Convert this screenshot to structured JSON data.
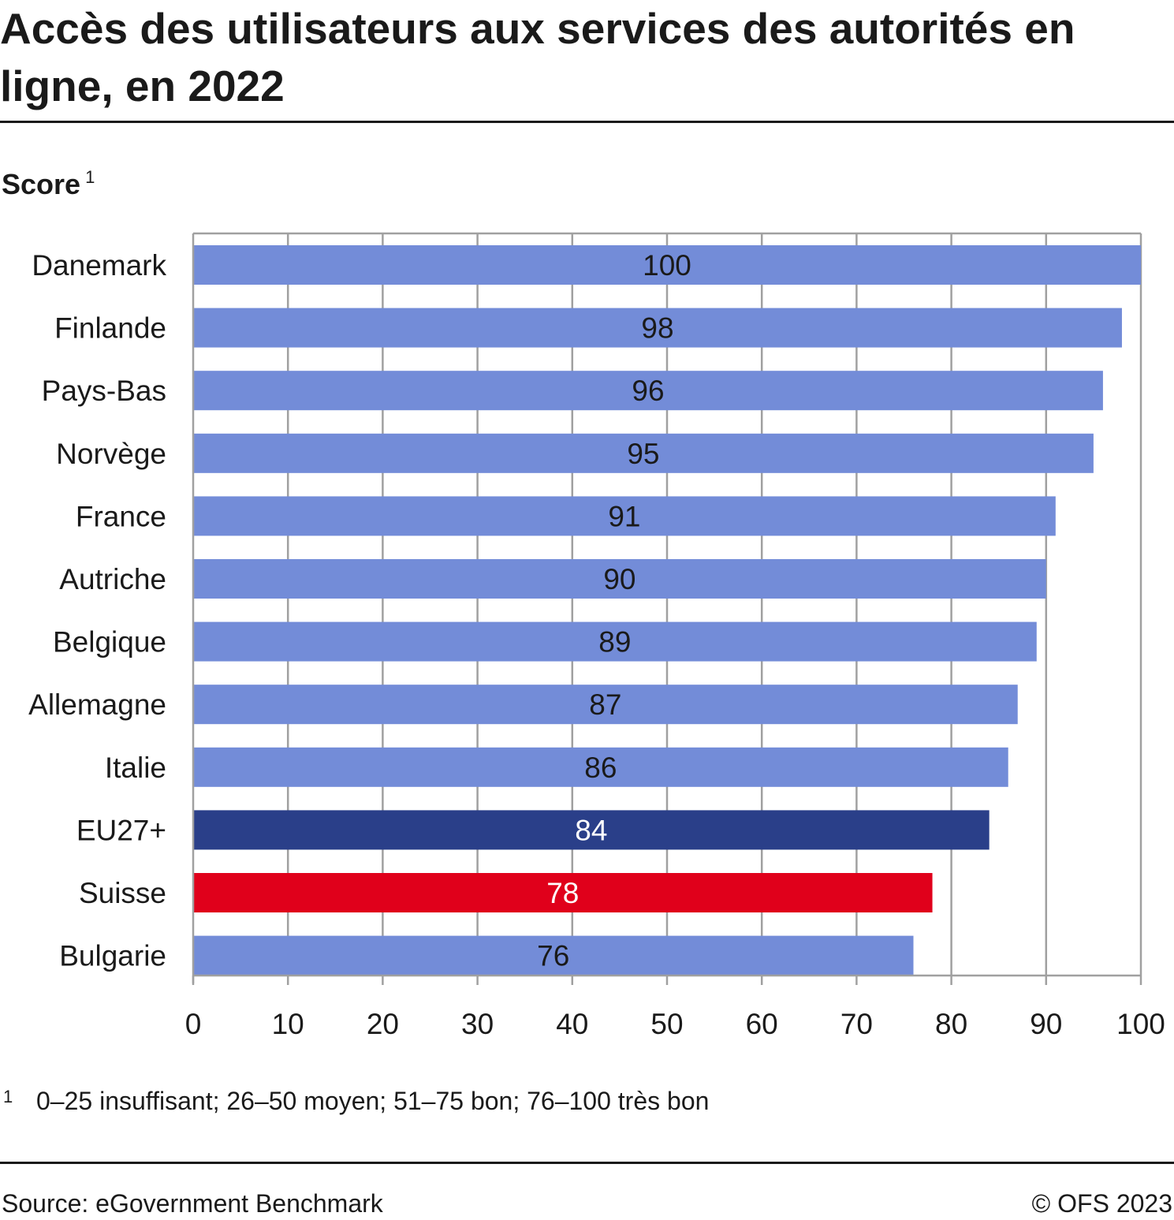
{
  "title": "Accès des utilisateurs aux services des autorités en ligne, en 2022",
  "score_label": "Score",
  "score_footnote_marker": "1",
  "footnote": {
    "marker": "1",
    "text": "0–25 insuffisant; 26–50 moyen; 51–75 bon; 76–100 très bon"
  },
  "source": "Source: eGovernment Benchmark",
  "copyright": "© OFS 2023",
  "colors": {
    "default_bar": "#738cd8",
    "eu_bar": "#2a3f89",
    "swiss_bar": "#e0001b",
    "grid": "#a0a0a0",
    "text": "#1a1a1a"
  },
  "chart_data": {
    "type": "bar",
    "orientation": "horizontal",
    "categories": [
      "Danemark",
      "Finlande",
      "Pays-Bas",
      "Norvège",
      "France",
      "Autriche",
      "Belgique",
      "Allemagne",
      "Italie",
      "EU27+",
      "Suisse",
      "Bulgarie"
    ],
    "values": [
      100,
      98,
      96,
      95,
      91,
      90,
      89,
      87,
      86,
      84,
      78,
      76
    ],
    "bar_colors": [
      "default_bar",
      "default_bar",
      "default_bar",
      "default_bar",
      "default_bar",
      "default_bar",
      "default_bar",
      "default_bar",
      "default_bar",
      "eu_bar",
      "swiss_bar",
      "default_bar"
    ],
    "label_colors": [
      "dark",
      "dark",
      "dark",
      "dark",
      "dark",
      "dark",
      "dark",
      "dark",
      "dark",
      "light",
      "light",
      "dark"
    ],
    "xlim": [
      0,
      100
    ],
    "xticks": [
      "0",
      "10",
      "20",
      "30",
      "40",
      "50",
      "60",
      "70",
      "80",
      "90",
      "100"
    ],
    "grid": true,
    "data_labels": true
  }
}
